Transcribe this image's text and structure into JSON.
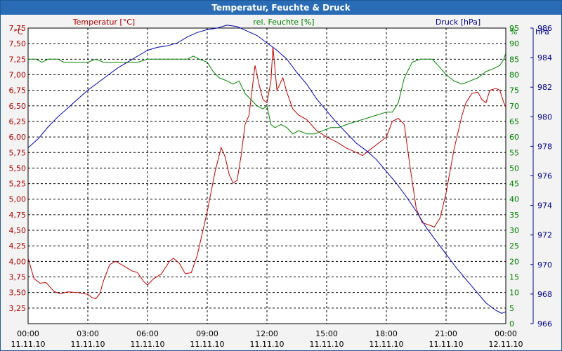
{
  "chart_data": {
    "type": "line",
    "title": "Temperatur, Feuchte & Druck",
    "x_tick_labels": [
      {
        "time": "00:00",
        "date": "11.11.10"
      },
      {
        "time": "03:00",
        "date": "11.11.10"
      },
      {
        "time": "06:00",
        "date": "11.11.10"
      },
      {
        "time": "09:00",
        "date": "11.11.10"
      },
      {
        "time": "12:00",
        "date": "11.11.10"
      },
      {
        "time": "15:00",
        "date": "11.11.10"
      },
      {
        "time": "18:00",
        "date": "11.11.10"
      },
      {
        "time": "21:00",
        "date": "11.11.10"
      },
      {
        "time": "00:00",
        "date": "12.11.10"
      }
    ],
    "xlim_hours": [
      0,
      24
    ],
    "axes": {
      "left": {
        "label": "Temperatur [°C]",
        "unit": "°C",
        "min": 3.0,
        "max": 7.75,
        "step": 0.25,
        "color": "#b00000",
        "decimals": 2
      },
      "middle": {
        "label": "rel. Feuchte [%]",
        "unit": "%",
        "min": 0,
        "max": 95,
        "step": 5,
        "color": "#008000",
        "decimals": 0
      },
      "right": {
        "label": "Druck [hPa]",
        "unit": "hPa",
        "min": 966,
        "max": 986,
        "step": 2,
        "color": "#00008b",
        "decimals": 0
      }
    },
    "series": [
      {
        "name": "Temperatur",
        "axis": "left",
        "color": "#c00000",
        "points": [
          [
            0,
            4.05
          ],
          [
            0.3,
            3.72
          ],
          [
            0.6,
            3.65
          ],
          [
            0.9,
            3.66
          ],
          [
            1.3,
            3.52
          ],
          [
            1.6,
            3.48
          ],
          [
            2.0,
            3.51
          ],
          [
            2.5,
            3.5
          ],
          [
            3.0,
            3.47
          ],
          [
            3.2,
            3.42
          ],
          [
            3.4,
            3.4
          ],
          [
            3.6,
            3.48
          ],
          [
            3.8,
            3.7
          ],
          [
            4.1,
            3.95
          ],
          [
            4.4,
            4.0
          ],
          [
            4.8,
            3.93
          ],
          [
            5.2,
            3.85
          ],
          [
            5.5,
            3.82
          ],
          [
            5.8,
            3.68
          ],
          [
            6.0,
            3.62
          ],
          [
            6.3,
            3.72
          ],
          [
            6.7,
            3.8
          ],
          [
            7.1,
            4.0
          ],
          [
            7.3,
            4.05
          ],
          [
            7.6,
            3.97
          ],
          [
            7.9,
            3.8
          ],
          [
            8.2,
            3.82
          ],
          [
            8.5,
            4.1
          ],
          [
            9.0,
            4.8
          ],
          [
            9.4,
            5.45
          ],
          [
            9.7,
            5.83
          ],
          [
            9.9,
            5.68
          ],
          [
            10.1,
            5.4
          ],
          [
            10.3,
            5.26
          ],
          [
            10.5,
            5.3
          ],
          [
            10.7,
            5.7
          ],
          [
            10.9,
            6.2
          ],
          [
            11.1,
            6.35
          ],
          [
            11.4,
            7.15
          ],
          [
            11.6,
            6.85
          ],
          [
            11.8,
            6.6
          ],
          [
            12.0,
            6.55
          ],
          [
            12.2,
            6.9
          ],
          [
            12.3,
            7.45
          ],
          [
            12.5,
            6.75
          ],
          [
            12.8,
            6.95
          ],
          [
            13.0,
            6.72
          ],
          [
            13.3,
            6.45
          ],
          [
            13.6,
            6.35
          ],
          [
            14.0,
            6.28
          ],
          [
            14.5,
            6.1
          ],
          [
            15.0,
            6.0
          ],
          [
            15.5,
            5.92
          ],
          [
            16.0,
            5.82
          ],
          [
            16.5,
            5.75
          ],
          [
            16.8,
            5.7
          ],
          [
            17.2,
            5.8
          ],
          [
            17.6,
            5.9
          ],
          [
            18.0,
            6.0
          ],
          [
            18.3,
            6.25
          ],
          [
            18.6,
            6.3
          ],
          [
            18.9,
            6.2
          ],
          [
            19.2,
            5.5
          ],
          [
            19.5,
            4.85
          ],
          [
            19.8,
            4.62
          ],
          [
            20.2,
            4.58
          ],
          [
            20.4,
            4.55
          ],
          [
            20.7,
            4.7
          ],
          [
            21.0,
            5.1
          ],
          [
            21.4,
            5.8
          ],
          [
            21.8,
            6.35
          ],
          [
            22.0,
            6.55
          ],
          [
            22.3,
            6.7
          ],
          [
            22.6,
            6.72
          ],
          [
            22.8,
            6.6
          ],
          [
            23.0,
            6.55
          ],
          [
            23.2,
            6.75
          ],
          [
            23.5,
            6.78
          ],
          [
            23.7,
            6.75
          ],
          [
            23.9,
            6.55
          ],
          [
            24.0,
            6.48
          ]
        ]
      },
      {
        "name": "rel. Feuchte",
        "axis": "middle",
        "color": "#008000",
        "points": [
          [
            0,
            85
          ],
          [
            0.4,
            85
          ],
          [
            0.7,
            84
          ],
          [
            1.0,
            85
          ],
          [
            1.5,
            85
          ],
          [
            1.8,
            84
          ],
          [
            2.5,
            84
          ],
          [
            3.0,
            84
          ],
          [
            3.4,
            85
          ],
          [
            3.8,
            84
          ],
          [
            4.2,
            84
          ],
          [
            4.6,
            84
          ],
          [
            5.0,
            84
          ],
          [
            5.5,
            84
          ],
          [
            6.0,
            85
          ],
          [
            6.5,
            85
          ],
          [
            7.0,
            85
          ],
          [
            7.5,
            85
          ],
          [
            8.0,
            85
          ],
          [
            8.3,
            86
          ],
          [
            8.6,
            85
          ],
          [
            9.0,
            84
          ],
          [
            9.3,
            81
          ],
          [
            9.6,
            79
          ],
          [
            10.0,
            78
          ],
          [
            10.3,
            77
          ],
          [
            10.6,
            78
          ],
          [
            10.9,
            74
          ],
          [
            11.2,
            72
          ],
          [
            11.5,
            70
          ],
          [
            11.8,
            69
          ],
          [
            12.0,
            70
          ],
          [
            12.2,
            64
          ],
          [
            12.4,
            63
          ],
          [
            12.7,
            64
          ],
          [
            13.0,
            63
          ],
          [
            13.3,
            61
          ],
          [
            13.6,
            62
          ],
          [
            14.0,
            61
          ],
          [
            14.4,
            61
          ],
          [
            14.8,
            62
          ],
          [
            15.2,
            63
          ],
          [
            15.6,
            63
          ],
          [
            16.0,
            64
          ],
          [
            16.5,
            65
          ],
          [
            17.0,
            66
          ],
          [
            17.5,
            67
          ],
          [
            18.0,
            68
          ],
          [
            18.3,
            68
          ],
          [
            18.6,
            71
          ],
          [
            18.9,
            79
          ],
          [
            19.3,
            84
          ],
          [
            19.7,
            85
          ],
          [
            20.0,
            85
          ],
          [
            20.3,
            85
          ],
          [
            20.6,
            83
          ],
          [
            21.0,
            80
          ],
          [
            21.4,
            78
          ],
          [
            21.8,
            77
          ],
          [
            22.2,
            78
          ],
          [
            22.6,
            79
          ],
          [
            23.0,
            81
          ],
          [
            23.4,
            82
          ],
          [
            23.7,
            83
          ],
          [
            23.9,
            85
          ],
          [
            24.0,
            87
          ]
        ]
      },
      {
        "name": "Druck",
        "axis": "right",
        "color": "#0000aa",
        "points": [
          [
            0,
            977.9
          ],
          [
            0.5,
            978.5
          ],
          [
            1.0,
            979.3
          ],
          [
            1.5,
            980.0
          ],
          [
            2.0,
            980.6
          ],
          [
            2.5,
            981.2
          ],
          [
            3.0,
            981.8
          ],
          [
            3.5,
            982.3
          ],
          [
            4.0,
            982.8
          ],
          [
            4.5,
            983.3
          ],
          [
            5.0,
            983.7
          ],
          [
            5.5,
            984.1
          ],
          [
            6.0,
            984.5
          ],
          [
            6.5,
            984.7
          ],
          [
            7.0,
            984.8
          ],
          [
            7.5,
            985.0
          ],
          [
            8.0,
            985.4
          ],
          [
            8.5,
            985.7
          ],
          [
            9.0,
            985.9
          ],
          [
            9.5,
            986.0
          ],
          [
            10.0,
            986.2
          ],
          [
            10.5,
            986.1
          ],
          [
            11.0,
            985.8
          ],
          [
            11.5,
            985.5
          ],
          [
            12.0,
            985.0
          ],
          [
            12.5,
            984.5
          ],
          [
            13.0,
            983.9
          ],
          [
            13.5,
            983.0
          ],
          [
            14.0,
            982.2
          ],
          [
            14.5,
            981.2
          ],
          [
            15.0,
            980.4
          ],
          [
            15.5,
            979.6
          ],
          [
            16.0,
            978.9
          ],
          [
            16.5,
            978.2
          ],
          [
            17.0,
            977.7
          ],
          [
            17.5,
            977.1
          ],
          [
            18.0,
            976.3
          ],
          [
            18.5,
            975.5
          ],
          [
            19.0,
            974.6
          ],
          [
            19.5,
            973.6
          ],
          [
            20.0,
            972.5
          ],
          [
            20.5,
            971.6
          ],
          [
            21.0,
            970.7
          ],
          [
            21.5,
            969.8
          ],
          [
            22.0,
            969.0
          ],
          [
            22.5,
            968.2
          ],
          [
            23.0,
            967.4
          ],
          [
            23.5,
            966.9
          ],
          [
            23.8,
            966.7
          ],
          [
            24.0,
            966.8
          ]
        ]
      }
    ]
  }
}
